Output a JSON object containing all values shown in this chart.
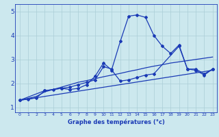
{
  "title": "",
  "xlabel": "Graphe des températures (°c)",
  "ylabel": "",
  "xlim": [
    -0.5,
    23.5
  ],
  "ylim": [
    0.8,
    5.3
  ],
  "yticks": [
    1,
    2,
    3,
    4,
    5
  ],
  "xticks": [
    0,
    1,
    2,
    3,
    4,
    5,
    6,
    7,
    8,
    9,
    10,
    11,
    12,
    13,
    14,
    15,
    16,
    17,
    18,
    19,
    20,
    21,
    22,
    23
  ],
  "bg_color": "#cce8ee",
  "grid_color": "#aacdd6",
  "line_color": "#1a3ab5",
  "lines": [
    {
      "x": [
        0,
        1,
        2,
        3,
        4,
        5,
        6,
        7,
        8,
        9,
        10,
        11,
        12,
        13,
        14,
        15,
        16,
        17,
        18,
        19,
        20,
        21,
        22,
        23
      ],
      "y": [
        1.3,
        1.35,
        1.4,
        1.7,
        1.75,
        1.8,
        1.85,
        1.95,
        2.05,
        2.15,
        2.7,
        2.6,
        3.75,
        4.8,
        4.85,
        4.75,
        4.0,
        3.55,
        3.25,
        3.6,
        2.6,
        2.55,
        2.35,
        2.6
      ],
      "marker": "D",
      "markersize": 2.0,
      "linewidth": 0.9
    },
    {
      "x": [
        0,
        3,
        5,
        6,
        7,
        8,
        9,
        10,
        11,
        12,
        13,
        14,
        15,
        16,
        19,
        20,
        21,
        22,
        23
      ],
      "y": [
        1.3,
        1.7,
        1.8,
        1.75,
        1.8,
        1.95,
        2.3,
        2.85,
        2.55,
        2.1,
        2.15,
        2.25,
        2.35,
        2.4,
        3.55,
        2.6,
        2.6,
        2.4,
        2.6
      ],
      "marker": "D",
      "markersize": 2.0,
      "linewidth": 0.9
    },
    {
      "x": [
        0,
        1,
        2,
        3,
        4,
        5,
        6,
        7,
        8,
        9,
        10,
        11,
        12,
        13,
        14,
        15,
        16,
        17,
        18,
        19,
        20,
        21,
        22,
        23
      ],
      "y": [
        1.3,
        1.38,
        1.46,
        1.65,
        1.75,
        1.85,
        1.95,
        2.05,
        2.12,
        2.2,
        2.28,
        2.35,
        2.42,
        2.5,
        2.57,
        2.65,
        2.72,
        2.78,
        2.85,
        2.9,
        2.95,
        3.0,
        3.05,
        3.1
      ],
      "marker": null,
      "markersize": 0,
      "linewidth": 0.9
    },
    {
      "x": [
        0,
        23
      ],
      "y": [
        1.3,
        2.55
      ],
      "marker": null,
      "markersize": 0,
      "linewidth": 0.9
    }
  ],
  "xlabel_fontsize": 6.0,
  "xlabel_fontweight": "bold",
  "xtick_fontsize": 4.5,
  "ytick_fontsize": 6.5
}
